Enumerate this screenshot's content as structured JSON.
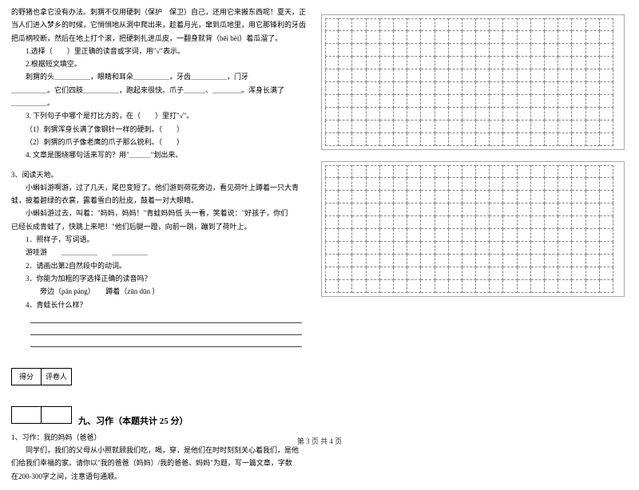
{
  "passage1": {
    "l1": "的野猪也拿它没有办法。刺猬不仅用硬刺（保护　保卫）自己，还用它来搬东西呢！夏天，正",
    "l2": "当人们进入梦乡的时候，它悄悄地从洞中爬出来，趁着月光，窜到瓜地里，用它那锋利的牙齿",
    "l3": "把瓜柄咬断，然后在地上打个滚，把硬刺扎进瓜皮，一翻身就背（bēi  bèi）着瓜溜了。",
    "q1": "1.选择（　　）里正确的读音或字词，用\"√\"表示。",
    "q2": "2.根据短文填空。",
    "q2l1": "　　刺猬的头＿＿＿＿＿，眼睛和耳朵＿＿＿＿＿，牙齿＿＿＿＿＿，门牙",
    "q2l2": "＿＿＿＿＿。它们四肢＿＿＿＿＿，跑起来很快。爪子＿＿＿、＿＿＿＿。浑身长满了",
    "q2l3": "＿＿＿＿＿。",
    "q3": "3. 下列句子中哪个是打比方的，在（　　）里打\"√\"。",
    "q3a": "（1）刺猬浑身长满了像钢针一样的硬刺。（　　）",
    "q3b": "（2）刺猬的爪子像老鹰的爪子那么锐利。（　　）",
    "q4": "4. 文章是围绕哪句话来写的？用\"＿＿＿\"划出来。"
  },
  "passage2": {
    "h": "3、阅读天地。",
    "p1": "　　小蝌蚪游啊游，过了几天，尾巴变短了。他们游到荷花旁边，看见荷叶上蹲着一只大青",
    "p1b": "蛙，披着碧绿的衣裳，露着雪白的肚皮，鼓着一对大眼睛。",
    "p2": "　　小蝌蚪游过去，叫着：\"妈妈，妈妈！\"青蛙妈妈低 头一看，笑着说：\"好孩子，你们",
    "p2b": "已经长成青蛙了，快跳上来吧！\"他们后腿一蹬，向前一跳，蹦到了荷叶上。",
    "q1": "1．照样子，写词语。",
    "q1a": "游哇游　　＿＿＿＿＿　　＿＿＿＿＿",
    "q2": "2．请画出第2自然段中的动词。",
    "q3": "3．你能为加粗的字选择正确的读音吗？",
    "q3a": "旁边（pán  páng）　　蹲着（zūn  dūn ）",
    "q4": "4．青蛙长什么样？"
  },
  "section9": {
    "score_l": "得分",
    "score_r": "评卷人",
    "title": "九、习作（本题共计 25 分）",
    "h": "1、习作：我的妈妈（爸爸）",
    "p1": "　　同学们，我们的父母从小照就顾我们吃，喝，穿，是他们在时时刻刻关心着我们，是他",
    "p2": "们给我们幸福的家。请你以\"我的爸爸（妈妈）/我的爸爸、妈妈\"为题，写一篇文章，字数",
    "p3": "在200-300字之间，注意语句通顺。"
  },
  "grid": {
    "rows": 10,
    "cols": 21
  },
  "footer": "第 3 页  共 4 页"
}
